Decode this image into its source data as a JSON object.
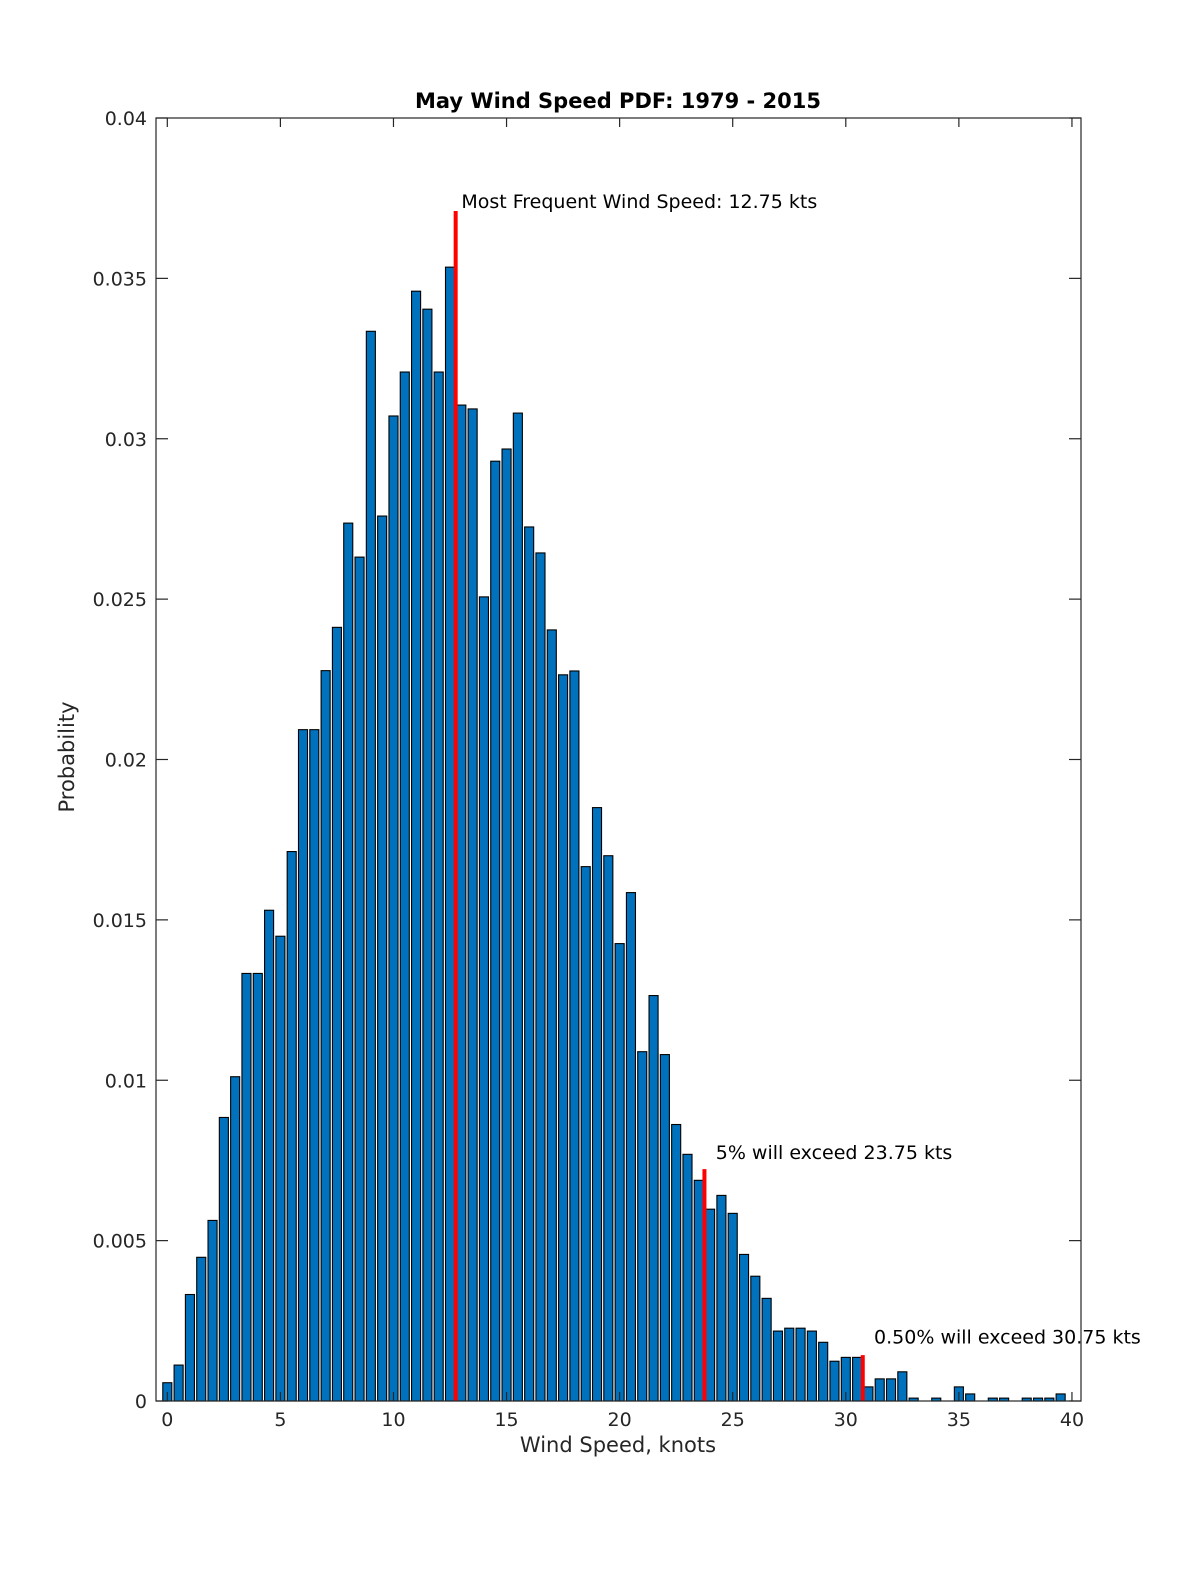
{
  "chart_data": {
    "type": "bar",
    "title": "May Wind Speed PDF: 1979 - 2015",
    "xlabel": "Wind Speed, knots",
    "ylabel": "Probability",
    "xlim": [
      -0.5,
      40.4
    ],
    "ylim": [
      0,
      0.04
    ],
    "grid": false,
    "legend": null,
    "x_ticks": [
      0,
      5,
      10,
      15,
      20,
      25,
      30,
      35,
      40
    ],
    "x_tick_labels": [
      "0",
      "5",
      "10",
      "15",
      "20",
      "25",
      "30",
      "35",
      "40"
    ],
    "y_ticks": [
      0,
      0.005,
      0.01,
      0.015,
      0.02,
      0.025,
      0.03,
      0.035,
      0.04
    ],
    "y_tick_labels": [
      "0",
      "0.005",
      "0.01",
      "0.015",
      "0.02",
      "0.025",
      "0.03",
      "0.035",
      "0.04"
    ],
    "bar_color": "#0072BD",
    "bar_edge_color": "#000000",
    "bar_width_fraction": 0.8,
    "bin_step": 0.5,
    "x": [
      0,
      0.5,
      1,
      1.5,
      2,
      2.5,
      3,
      3.5,
      4,
      4.5,
      5,
      5.5,
      6,
      6.5,
      7,
      7.5,
      8,
      8.5,
      9,
      9.5,
      10,
      10.5,
      11,
      11.5,
      12,
      12.5,
      13,
      13.5,
      14,
      14.5,
      15,
      15.5,
      16,
      16.5,
      17,
      17.5,
      18,
      18.5,
      19,
      19.5,
      20,
      20.5,
      21,
      21.5,
      22,
      22.5,
      23,
      23.5,
      24,
      24.5,
      25,
      25.5,
      26,
      26.5,
      27,
      27.5,
      28,
      28.5,
      29,
      29.5,
      30,
      30.5,
      31,
      31.5,
      32,
      32.5,
      33,
      33.5,
      34,
      34.5,
      35,
      35.5,
      36,
      36.5,
      37,
      37.5,
      38,
      38.5,
      39,
      39.5,
      40
    ],
    "values": [
      0.00057,
      0.00112,
      0.00332,
      0.00448,
      0.00563,
      0.00884,
      0.01011,
      0.01333,
      0.01333,
      0.0153,
      0.01449,
      0.01713,
      0.02093,
      0.02093,
      0.02277,
      0.02412,
      0.02737,
      0.02631,
      0.03335,
      0.02759,
      0.03071,
      0.03208,
      0.0346,
      0.03404,
      0.03208,
      0.03535,
      0.03105,
      0.03093,
      0.02507,
      0.0293,
      0.02968,
      0.0308,
      0.02725,
      0.02644,
      0.02404,
      0.02264,
      0.02276,
      0.01666,
      0.0185,
      0.017,
      0.01426,
      0.01585,
      0.01089,
      0.01264,
      0.0108,
      0.00862,
      0.00769,
      0.00688,
      0.00598,
      0.00641,
      0.00585,
      0.00457,
      0.00389,
      0.0032,
      0.00218,
      0.00227,
      0.00227,
      0.00218,
      0.00183,
      0.00124,
      0.00136,
      0.00136,
      0.00044,
      0.00069,
      0.00069,
      0.00091,
      9e-05,
      0.0,
      9e-05,
      0.0,
      0.00044,
      0.00022,
      0.0,
      9e-05,
      9e-05,
      0.0,
      9e-05,
      9e-05,
      9e-05,
      0.00022,
      0.0
    ],
    "markers": [
      {
        "name": "mode",
        "x": 12.75,
        "top": 0.0371,
        "color": "#FF0000",
        "label": "Most Frequent Wind Speed: 12.75 kts"
      },
      {
        "name": "p95",
        "x": 23.75,
        "top": 0.00723,
        "color": "#FF0000",
        "label": "5% will exceed 23.75 kts"
      },
      {
        "name": "p995",
        "x": 30.75,
        "top": 0.00143,
        "color": "#FF0000",
        "label": "0.50% will exceed 30.75 kts"
      }
    ],
    "annotations": [
      {
        "text": "Most Frequent Wind Speed: 12.75 kts",
        "x": 13.0,
        "y": 0.0372
      },
      {
        "text": "5% will exceed 23.75 kts",
        "x": 24.25,
        "y": 0.00755
      },
      {
        "text": "0.50% will exceed 30.75 kts",
        "x": 31.25,
        "y": 0.0018
      }
    ]
  }
}
